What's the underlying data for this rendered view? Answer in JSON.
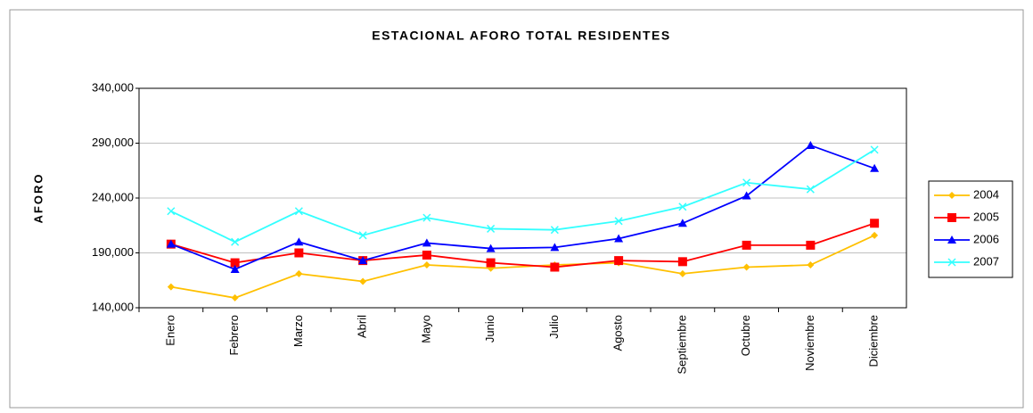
{
  "chart_data": {
    "type": "line",
    "title": "ESTACIONAL AFORO TOTAL RESIDENTES",
    "y_label": "AFORO",
    "categories": [
      "Enero",
      "Febrero",
      "Marzo",
      "Abril",
      "Mayo",
      "Junio",
      "Julio",
      "Agosto",
      "Septiembre",
      "Octubre",
      "Noviembre",
      "Diciembre"
    ],
    "series": [
      {
        "name": "2004",
        "color": "#ffc000",
        "marker": "diamond",
        "values": [
          159000,
          149000,
          171000,
          164000,
          179000,
          176000,
          179000,
          181000,
          171000,
          177000,
          179000,
          206000
        ]
      },
      {
        "name": "2005",
        "color": "#ff0000",
        "marker": "square",
        "values": [
          198000,
          181000,
          190000,
          183000,
          188000,
          181000,
          177000,
          183000,
          182000,
          197000,
          197000,
          217000
        ]
      },
      {
        "name": "2006",
        "color": "#0000ff",
        "marker": "triangle",
        "values": [
          198000,
          175000,
          200000,
          183000,
          199000,
          194000,
          195000,
          203000,
          217000,
          242000,
          288000,
          267000
        ]
      },
      {
        "name": "2007",
        "color": "#33ffff",
        "marker": "x",
        "values": [
          228000,
          200000,
          228000,
          206000,
          222000,
          212000,
          211000,
          219000,
          232000,
          254000,
          248000,
          284000
        ]
      }
    ],
    "ylim": [
      140000,
      340000
    ],
    "yticks": [
      {
        "value": 140000,
        "label": "140,000"
      },
      {
        "value": 190000,
        "label": "190,000"
      },
      {
        "value": 240000,
        "label": "240,000"
      },
      {
        "value": 290000,
        "label": "290,000"
      },
      {
        "value": 340000,
        "label": "340,000"
      }
    ],
    "grid": true,
    "legend": "right"
  }
}
